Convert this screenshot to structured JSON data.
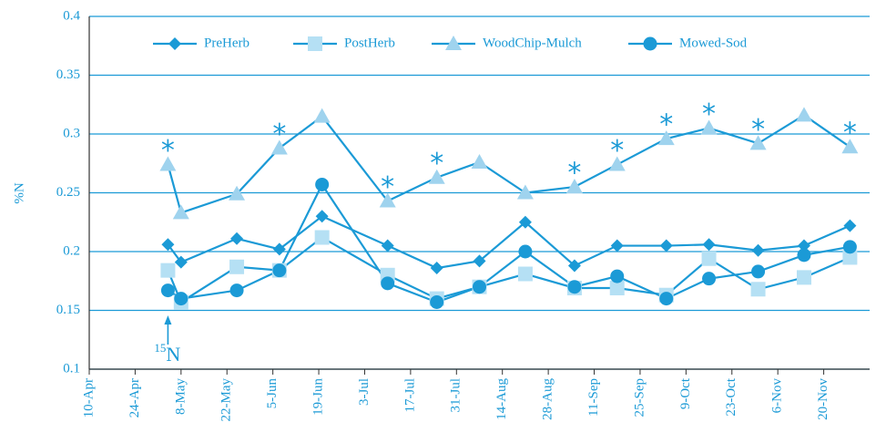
{
  "chart_data": {
    "type": "line",
    "y_label": "%N",
    "x": [
      "05-04",
      "05-08",
      "05-25",
      "06-07",
      "06-20",
      "07-10",
      "07-25",
      "08-07",
      "08-21",
      "09-05",
      "09-18",
      "10-03",
      "10-16",
      "10-31",
      "11-14",
      "11-28"
    ],
    "series": [
      {
        "name": "PreHerb",
        "color": "#1b9ad6",
        "marker": "diamond",
        "marker_color": "#1b9ad6",
        "values": [
          0.206,
          0.191,
          0.211,
          0.202,
          0.23,
          0.205,
          0.186,
          0.192,
          0.225,
          0.188,
          0.205,
          0.205,
          0.206,
          0.201,
          0.205,
          0.222
        ]
      },
      {
        "name": "PostHerb",
        "color": "#1b9ad6",
        "marker": "square",
        "marker_color": "#b5e0f4",
        "values": [
          0.184,
          0.157,
          0.187,
          0.184,
          0.212,
          0.18,
          0.16,
          0.17,
          0.181,
          0.169,
          0.169,
          0.163,
          0.194,
          0.168,
          0.178,
          0.195
        ]
      },
      {
        "name": "WoodChip-Mulch",
        "color": "#1b9ad6",
        "marker": "triangle",
        "marker_color": "#9fd3ee",
        "values": [
          0.274,
          0.233,
          0.249,
          0.288,
          0.315,
          0.243,
          0.263,
          0.276,
          0.25,
          0.255,
          0.274,
          0.296,
          0.305,
          0.292,
          0.316,
          0.289
        ]
      },
      {
        "name": "Mowed-Sod",
        "color": "#1b9ad6",
        "marker": "circle",
        "marker_color": "#1b9ad6",
        "values": [
          0.167,
          0.16,
          0.167,
          0.184,
          0.257,
          0.173,
          0.157,
          0.17,
          0.2,
          0.17,
          0.179,
          0.16,
          0.177,
          0.183,
          0.197,
          0.204
        ]
      }
    ],
    "annotations": [
      {
        "x": "05-04",
        "text": "*"
      },
      {
        "x": "06-07",
        "text": "*"
      },
      {
        "x": "07-10",
        "text": "*"
      },
      {
        "x": "07-25",
        "text": "*"
      },
      {
        "x": "09-05",
        "text": "*"
      },
      {
        "x": "09-18",
        "text": "*"
      },
      {
        "x": "10-03",
        "text": "*"
      },
      {
        "x": "10-16",
        "text": "*"
      },
      {
        "x": "10-31",
        "text": "*"
      },
      {
        "x": "11-28",
        "text": "*"
      }
    ],
    "isotope_label": {
      "x": "05-04",
      "mass": "15",
      "symbol": "N"
    },
    "xlim": [
      "04-10",
      "12-04"
    ],
    "xticks": [
      {
        "value": "04-10",
        "label": "10-Apr"
      },
      {
        "value": "04-24",
        "label": "24-Apr"
      },
      {
        "value": "05-08",
        "label": "8-May"
      },
      {
        "value": "05-22",
        "label": "22-May"
      },
      {
        "value": "06-05",
        "label": "5-Jun"
      },
      {
        "value": "06-19",
        "label": "19-Jun"
      },
      {
        "value": "07-03",
        "label": "3-Jul"
      },
      {
        "value": "07-17",
        "label": "17-Jul"
      },
      {
        "value": "07-31",
        "label": "31-Jul"
      },
      {
        "value": "08-14",
        "label": "14-Aug"
      },
      {
        "value": "08-28",
        "label": "28-Aug"
      },
      {
        "value": "09-11",
        "label": "11-Sep"
      },
      {
        "value": "09-25",
        "label": "25-Sep"
      },
      {
        "value": "10-09",
        "label": "9-Oct"
      },
      {
        "value": "10-23",
        "label": "23-Oct"
      },
      {
        "value": "11-06",
        "label": "6-Nov"
      },
      {
        "value": "11-20",
        "label": "20-Nov"
      }
    ],
    "ylim": [
      0.1,
      0.4
    ],
    "yticks": [
      0.1,
      0.15,
      0.2,
      0.25,
      0.3,
      0.35,
      0.4
    ],
    "grid": true,
    "legend": "top"
  }
}
